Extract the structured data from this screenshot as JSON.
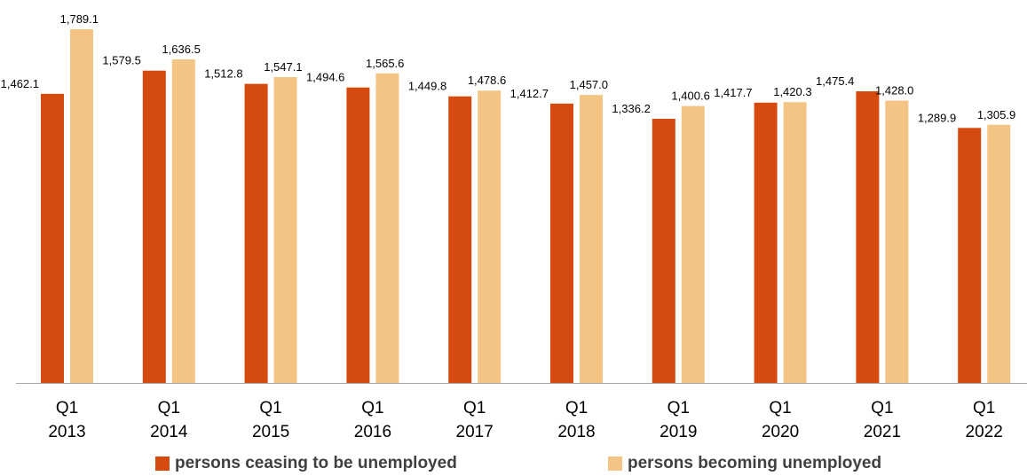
{
  "chart_data": {
    "type": "bar",
    "categories": [
      [
        "Q1",
        "2013"
      ],
      [
        "Q1",
        "2014"
      ],
      [
        "Q1",
        "2015"
      ],
      [
        "Q1",
        "2016"
      ],
      [
        "Q1",
        "2017"
      ],
      [
        "Q1",
        "2018"
      ],
      [
        "Q1",
        "2019"
      ],
      [
        "Q1",
        "2020"
      ],
      [
        "Q1",
        "2021"
      ],
      [
        "Q1",
        "2022"
      ]
    ],
    "series": [
      {
        "name": "persons ceasing to be unemployed",
        "color": "#D54A0E",
        "values": [
          1462.1,
          1579.5,
          1512.8,
          1494.6,
          1449.8,
          1412.7,
          1336.2,
          1417.7,
          1475.4,
          1289.9
        ],
        "labels": [
          "1,462.1",
          "1,579.5",
          "1,512.8",
          "1,494.6",
          "1,449.8",
          "1,412.7",
          "1,336.2",
          "1,417.7",
          "1,475.4",
          "1,289.9"
        ]
      },
      {
        "name": "persons becoming unemployed",
        "color": "#F4C485",
        "values": [
          1789.1,
          1636.5,
          1547.1,
          1565.6,
          1478.6,
          1457.0,
          1400.6,
          1420.3,
          1428.0,
          1305.9
        ],
        "labels": [
          "1,789.1",
          "1,636.5",
          "1,547.1",
          "1,565.6",
          "1,478.6",
          "1,457.0",
          "1,400.6",
          "1,420.3",
          "1,428.0",
          "1,305.9"
        ]
      }
    ],
    "ylim": [
      0,
      1789.1
    ],
    "grid": false,
    "legend_position": "bottom",
    "axis_color": "#A6A6A6"
  }
}
